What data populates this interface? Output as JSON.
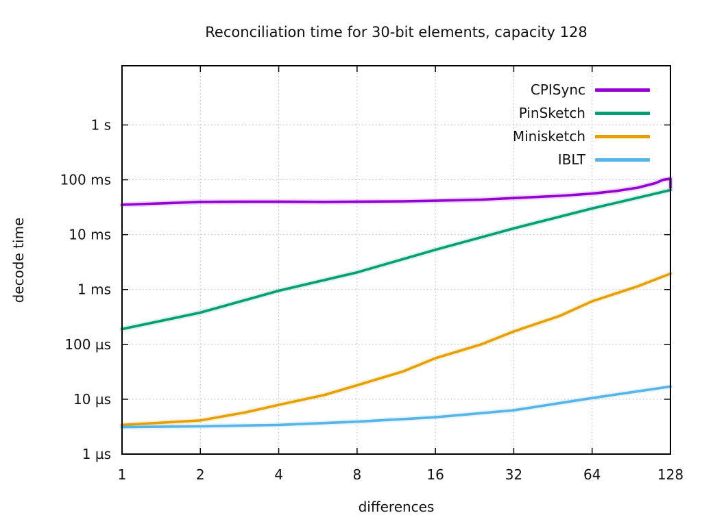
{
  "chart_data": {
    "type": "line",
    "title": "Reconciliation time for 30-bit elements, capacity 128",
    "xlabel": "differences",
    "ylabel": "decode time",
    "x_scale": "log2",
    "y_scale": "log10",
    "grid": true,
    "legend_position": "top-right",
    "xlim": [
      1,
      128
    ],
    "ylim_us": [
      1,
      12000000
    ],
    "x_ticks": [
      1,
      2,
      4,
      8,
      16,
      32,
      64,
      128
    ],
    "y_ticks": [
      {
        "value_us": 1,
        "label": "1 µs"
      },
      {
        "value_us": 10,
        "label": "10 µs"
      },
      {
        "value_us": 100,
        "label": "100 µs"
      },
      {
        "value_us": 1000,
        "label": "1 ms"
      },
      {
        "value_us": 10000,
        "label": "10 ms"
      },
      {
        "value_us": 100000,
        "label": "100 ms"
      },
      {
        "value_us": 1000000,
        "label": "1 s"
      }
    ],
    "series": [
      {
        "name": "CPISync",
        "color": "#9400d3",
        "x": [
          1,
          1.5,
          2,
          3,
          4,
          6,
          8,
          12,
          16,
          24,
          32,
          48,
          64,
          80,
          96,
          112,
          120,
          128,
          128
        ],
        "y_us": [
          35000,
          37500,
          39500,
          40000,
          40000,
          39500,
          40000,
          40500,
          41500,
          43500,
          46500,
          51000,
          56000,
          63000,
          72000,
          87000,
          100000,
          105000,
          72000
        ]
      },
      {
        "name": "PinSketch",
        "color": "#009e73",
        "x": [
          1,
          2,
          4,
          8,
          16,
          32,
          64,
          128
        ],
        "y_us": [
          190,
          380,
          950,
          2050,
          5300,
          13000,
          30000,
          65000
        ]
      },
      {
        "name": "Minisketch",
        "color": "#e69f00",
        "x": [
          1,
          2,
          3,
          4,
          6,
          8,
          12,
          16,
          24,
          32,
          48,
          64,
          96,
          128
        ],
        "y_us": [
          3.4,
          4.1,
          5.8,
          7.9,
          12,
          18,
          32,
          56,
          100,
          172,
          330,
          610,
          1150,
          1950
        ]
      },
      {
        "name": "IBLT",
        "color": "#56b4e9",
        "x": [
          1,
          2,
          4,
          8,
          16,
          32,
          64,
          128
        ],
        "y_us": [
          3.1,
          3.2,
          3.4,
          3.9,
          4.7,
          6.3,
          10.5,
          17
        ]
      }
    ]
  }
}
